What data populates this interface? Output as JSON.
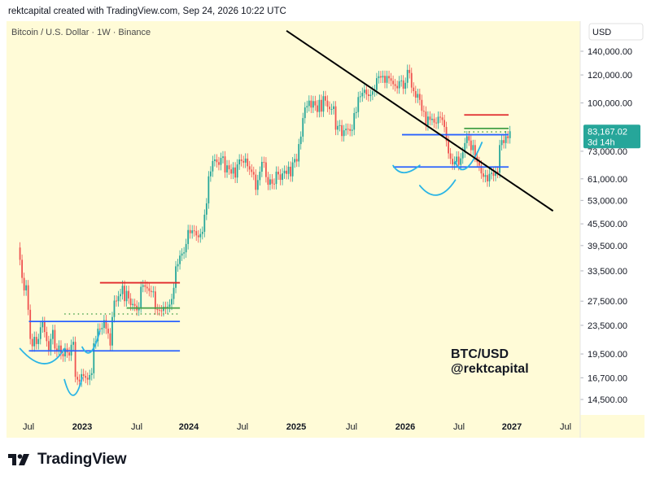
{
  "header": {
    "attribution": "rektcapital created with TradingView.com, Sep 24, 2026 10:22 UTC"
  },
  "footer": {
    "brand": "TradingView"
  },
  "colors": {
    "background": "#fffbd7",
    "up": "#26a69a",
    "down": "#ef5350",
    "blue_line": "#2962ff",
    "red_line": "#e0292c",
    "green_line": "#43a047",
    "trend_line": "#000000",
    "curve": "#2bb5e5",
    "price_badge": "#26a69a"
  },
  "chart_data": {
    "type": "candlestick",
    "title": "Bitcoin / U.S. Dollar · 1W · Binance",
    "currency_label": "USD",
    "y_scale": "log",
    "ylim": [
      12700,
      170000
    ],
    "y_ticks": [
      "140,000.00",
      "120,000.00",
      "100,000.00",
      "73,000.00",
      "61,000.00",
      "53,000.00",
      "45,500.00",
      "39,500.00",
      "33,500.00",
      "27,500.00",
      "23,500.00",
      "19,500.00",
      "16,700.00",
      "14,500.00"
    ],
    "x_ticks": [
      "Jul",
      "2023",
      "Jul",
      "2024",
      "Jul",
      "2025",
      "Jul",
      "2026",
      "Jul",
      "2027",
      "Jul"
    ],
    "last_price": {
      "value": "83,167.02",
      "countdown": "3d 14h"
    },
    "annotation": {
      "line1": "BTC/USD",
      "line2": "@rektcapital"
    },
    "weekly_closes": [
      [
        39000,
        36000
      ],
      [
        36000,
        32000
      ],
      [
        32000,
        29500
      ],
      [
        29500,
        30500
      ],
      [
        30500,
        26000
      ],
      [
        26000,
        21500
      ],
      [
        21500,
        20500
      ],
      [
        20500,
        21800
      ],
      [
        21800,
        20800
      ],
      [
        20800,
        21500
      ],
      [
        21500,
        23200
      ],
      [
        23200,
        24000
      ],
      [
        24000,
        22500
      ],
      [
        22500,
        21200
      ],
      [
        21200,
        20000
      ],
      [
        20000,
        21500
      ],
      [
        21500,
        22800
      ],
      [
        22800,
        20200
      ],
      [
        20200,
        19800
      ],
      [
        19800,
        20600
      ],
      [
        20600,
        19500
      ],
      [
        19500,
        19200
      ],
      [
        19200,
        20200
      ],
      [
        20200,
        19700
      ],
      [
        19700,
        19300
      ],
      [
        19300,
        20700
      ],
      [
        20700,
        21100
      ],
      [
        21100,
        16800
      ],
      [
        16800,
        16500
      ],
      [
        16500,
        16300
      ],
      [
        16300,
        17100
      ],
      [
        17100,
        16900
      ],
      [
        16900,
        16700
      ],
      [
        16700,
        16500
      ],
      [
        16500,
        17000
      ],
      [
        17000,
        17200
      ],
      [
        17200,
        20900
      ],
      [
        20900,
        21200
      ],
      [
        21200,
        23000
      ],
      [
        23000,
        22900
      ],
      [
        22900,
        23100
      ],
      [
        23100,
        24300
      ],
      [
        24300,
        23000
      ],
      [
        23000,
        22300
      ],
      [
        22300,
        20600
      ],
      [
        20600,
        24800
      ],
      [
        24800,
        27600
      ],
      [
        27600,
        27500
      ],
      [
        27500,
        28400
      ],
      [
        28400,
        28800
      ],
      [
        28800,
        30400
      ],
      [
        30400,
        27500
      ],
      [
        27500,
        29400
      ],
      [
        29400,
        28000
      ],
      [
        28000,
        26800
      ],
      [
        26800,
        27000
      ],
      [
        27000,
        26700
      ],
      [
        26700,
        25900
      ],
      [
        25900,
        26400
      ],
      [
        26400,
        30200
      ],
      [
        30200,
        30500
      ],
      [
        30500,
        30200
      ],
      [
        30200,
        29900
      ],
      [
        29900,
        29400
      ],
      [
        29400,
        29200
      ],
      [
        29200,
        29300
      ],
      [
        29300,
        26100
      ],
      [
        26100,
        26000
      ],
      [
        26000,
        25900
      ],
      [
        25900,
        25800
      ],
      [
        25800,
        26500
      ],
      [
        26500,
        26200
      ],
      [
        26200,
        26500
      ],
      [
        26500,
        26900
      ],
      [
        26900,
        27900
      ],
      [
        27900,
        30000
      ],
      [
        30000,
        34500
      ],
      [
        34500,
        35000
      ],
      [
        35000,
        37000
      ],
      [
        37000,
        37500
      ],
      [
        37500,
        37800
      ],
      [
        37800,
        39900
      ],
      [
        39900,
        43700
      ],
      [
        43700,
        42800
      ],
      [
        42800,
        43600
      ],
      [
        43600,
        43400
      ],
      [
        43400,
        42200
      ],
      [
        42200,
        41700
      ],
      [
        41700,
        42600
      ],
      [
        42600,
        43200
      ],
      [
        43200,
        48300
      ],
      [
        48300,
        52000
      ],
      [
        52000,
        62000
      ],
      [
        62000,
        64000
      ],
      [
        64000,
        68500
      ],
      [
        68500,
        69200
      ],
      [
        69200,
        68000
      ],
      [
        68000,
        66800
      ],
      [
        66800,
        69900
      ],
      [
        69900,
        70600
      ],
      [
        70600,
        63600
      ],
      [
        63600,
        66600
      ],
      [
        66600,
        64900
      ],
      [
        64900,
        63100
      ],
      [
        63100,
        65700
      ],
      [
        65700,
        61500
      ],
      [
        61500,
        67000
      ],
      [
        67000,
        69200
      ],
      [
        69200,
        68500
      ],
      [
        68500,
        67800
      ],
      [
        67800,
        69600
      ],
      [
        69600,
        66200
      ],
      [
        66200,
        64800
      ],
      [
        64800,
        63800
      ],
      [
        63800,
        62700
      ],
      [
        62700,
        56800
      ],
      [
        56800,
        60500
      ],
      [
        60500,
        63900
      ],
      [
        63900,
        68100
      ],
      [
        68100,
        67900
      ],
      [
        67900,
        61700
      ],
      [
        61700,
        58700
      ],
      [
        58700,
        60800
      ],
      [
        60800,
        59100
      ],
      [
        59100,
        59000
      ],
      [
        59000,
        63900
      ],
      [
        63900,
        62800
      ],
      [
        62800,
        60600
      ],
      [
        60600,
        63200
      ],
      [
        63200,
        64300
      ],
      [
        64300,
        63000
      ],
      [
        63000,
        66000
      ],
      [
        66000,
        62000
      ],
      [
        62000,
        67900
      ],
      [
        67900,
        69400
      ],
      [
        69400,
        68300
      ],
      [
        68300,
        76500
      ],
      [
        76500,
        80300
      ],
      [
        80300,
        90600
      ],
      [
        90600,
        97100
      ],
      [
        97100,
        98000
      ],
      [
        98000,
        101500
      ],
      [
        101500,
        97000
      ],
      [
        97000,
        101200
      ],
      [
        101200,
        98400
      ],
      [
        98400,
        94300
      ],
      [
        94300,
        102000
      ],
      [
        102000,
        94500
      ],
      [
        94500,
        104500
      ],
      [
        104500,
        101500
      ],
      [
        101500,
        97600
      ],
      [
        97600,
        96000
      ],
      [
        96000,
        96100
      ],
      [
        96100,
        97800
      ],
      [
        97800,
        84000
      ],
      [
        84000,
        86100
      ],
      [
        86100,
        86500
      ],
      [
        86500,
        80600
      ],
      [
        80600,
        83700
      ],
      [
        83700,
        84500
      ],
      [
        84500,
        84300
      ],
      [
        84300,
        83400
      ],
      [
        83400,
        84000
      ],
      [
        84000,
        93600
      ],
      [
        93600,
        94200
      ],
      [
        94200,
        103900
      ],
      [
        103900,
        104400
      ],
      [
        104400,
        106800
      ],
      [
        106800,
        109000
      ],
      [
        109000,
        105700
      ],
      [
        105700,
        104600
      ],
      [
        104600,
        105500
      ],
      [
        105500,
        107900
      ],
      [
        107900,
        108800
      ],
      [
        108800,
        117500
      ],
      [
        117500,
        119000
      ],
      [
        119000,
        118000
      ],
      [
        118000,
        119300
      ],
      [
        119300,
        114000
      ],
      [
        114000,
        119200
      ],
      [
        119200,
        117400
      ],
      [
        117400,
        115500
      ],
      [
        115500,
        113000
      ],
      [
        113000,
        111700
      ],
      [
        111700,
        110000
      ],
      [
        110000,
        115200
      ],
      [
        115200,
        115800
      ],
      [
        115800,
        109700
      ],
      [
        109700,
        114000
      ],
      [
        114000,
        124000
      ],
      [
        124000,
        121500
      ],
      [
        121500,
        110500
      ],
      [
        110500,
        108000
      ],
      [
        108000,
        103500
      ],
      [
        103500,
        106000
      ],
      [
        106000,
        102000
      ],
      [
        102000,
        95000
      ],
      [
        95000,
        94500
      ],
      [
        94500,
        86500
      ],
      [
        86500,
        91500
      ],
      [
        91500,
        89500
      ],
      [
        89500,
        90200
      ],
      [
        90200,
        88000
      ],
      [
        88000,
        87500
      ],
      [
        87500,
        91400
      ],
      [
        91400,
        91000
      ],
      [
        91000,
        89500
      ],
      [
        89500,
        85500
      ],
      [
        85500,
        78000
      ],
      [
        78000,
        72000
      ],
      [
        72000,
        69500
      ],
      [
        69500,
        67000
      ],
      [
        67000,
        68200
      ],
      [
        68200,
        70500
      ],
      [
        70500,
        66800
      ],
      [
        66800,
        69700
      ],
      [
        69700,
        72500
      ],
      [
        72500,
        77000
      ],
      [
        77000,
        80500
      ],
      [
        80500,
        78300
      ],
      [
        78300,
        73500
      ],
      [
        73500,
        76000
      ],
      [
        76000,
        70500
      ],
      [
        70500,
        68000
      ],
      [
        68000,
        66500
      ],
      [
        66500,
        63200
      ],
      [
        63200,
        61800
      ],
      [
        61800,
        62500
      ],
      [
        62500,
        60000
      ],
      [
        60000,
        63000
      ],
      [
        63000,
        63500
      ],
      [
        63500,
        62200
      ],
      [
        62200,
        64000
      ],
      [
        64000,
        63500
      ],
      [
        63500,
        76000
      ],
      [
        76000,
        78500
      ],
      [
        78500,
        77000
      ],
      [
        77000,
        80500
      ],
      [
        80500,
        79500
      ],
      [
        79500,
        83167
      ]
    ],
    "levels": [
      {
        "name": "red-range-high-2023",
        "value": 31000,
        "x_start": "2023 Mar",
        "x_end": "2023 Dec"
      },
      {
        "name": "green-level-2023",
        "value": 26300,
        "x_start": "2023 Jun",
        "x_end": "2023 Dec"
      },
      {
        "name": "green-dotted-2023",
        "value": 25300,
        "x_start": "2022 Nov",
        "x_end": "2023 Dec",
        "dotted": true
      },
      {
        "name": "blue-range-high-2022",
        "value": 24100,
        "x_start": "2022 Jul",
        "x_end": "2023 Dec"
      },
      {
        "name": "blue-range-low-2022",
        "value": 19900,
        "x_start": "2022 Jul",
        "x_end": "2023 Dec"
      },
      {
        "name": "red-level-2026",
        "value": 92500,
        "x_start": "2026 Aug",
        "x_end": "2027 Jan"
      },
      {
        "name": "green-level-2026",
        "value": 84700,
        "x_start": "2026 Aug",
        "x_end": "2027 Jan"
      },
      {
        "name": "green-dotted-2026",
        "value": 82800,
        "x_start": "2026 Aug",
        "x_end": "2027 Jan",
        "dotted": true
      },
      {
        "name": "blue-range-high-2026",
        "value": 81300,
        "x_start": "2026 Jan",
        "x_end": "2027 Jan"
      },
      {
        "name": "blue-range-low-2026",
        "value": 65900,
        "x_start": "2025 Dec",
        "x_end": "2027 Jan"
      }
    ],
    "trendline": {
      "from": [
        "2024 Dec",
        160000
      ],
      "to": [
        "2027 Jun",
        49500
      ]
    },
    "curves": [
      {
        "name": "bowl-2022-left",
        "from": [
          "2022 Jun",
          20200
        ],
        "via": [
          "2022 Sep",
          18300
        ],
        "to": [
          "2022 Nov",
          20200
        ]
      },
      {
        "name": "bowl-2022-bottom",
        "from": [
          "2022 Nov",
          16500
        ],
        "via": [
          "2022 Dec",
          14900
        ],
        "to": [
          "2023 Jan",
          16700
        ]
      },
      {
        "name": "bowl-2023",
        "from": [
          "2023 Jan",
          20400
        ],
        "via": [
          "2023 Feb",
          19800
        ],
        "to": [
          "2023 Mar",
          22700
        ]
      },
      {
        "name": "bowl-2026-left",
        "from": [
          "2025 Dec",
          66500
        ],
        "via": [
          "2026 Jan",
          63500
        ],
        "to": [
          "2026 Mar",
          66600
        ]
      },
      {
        "name": "bowl-2026-bottom",
        "from": [
          "2026 Mar",
          58400
        ],
        "via": [
          "2026 May",
          54900
        ],
        "to": [
          "2026 Jul",
          60500
        ]
      },
      {
        "name": "bowl-2026-right",
        "from": [
          "2026 Jul",
          68200
        ],
        "via": [
          "2026 Aug",
          65400
        ],
        "to": [
          "2026 Oct",
          77300
        ]
      }
    ]
  }
}
